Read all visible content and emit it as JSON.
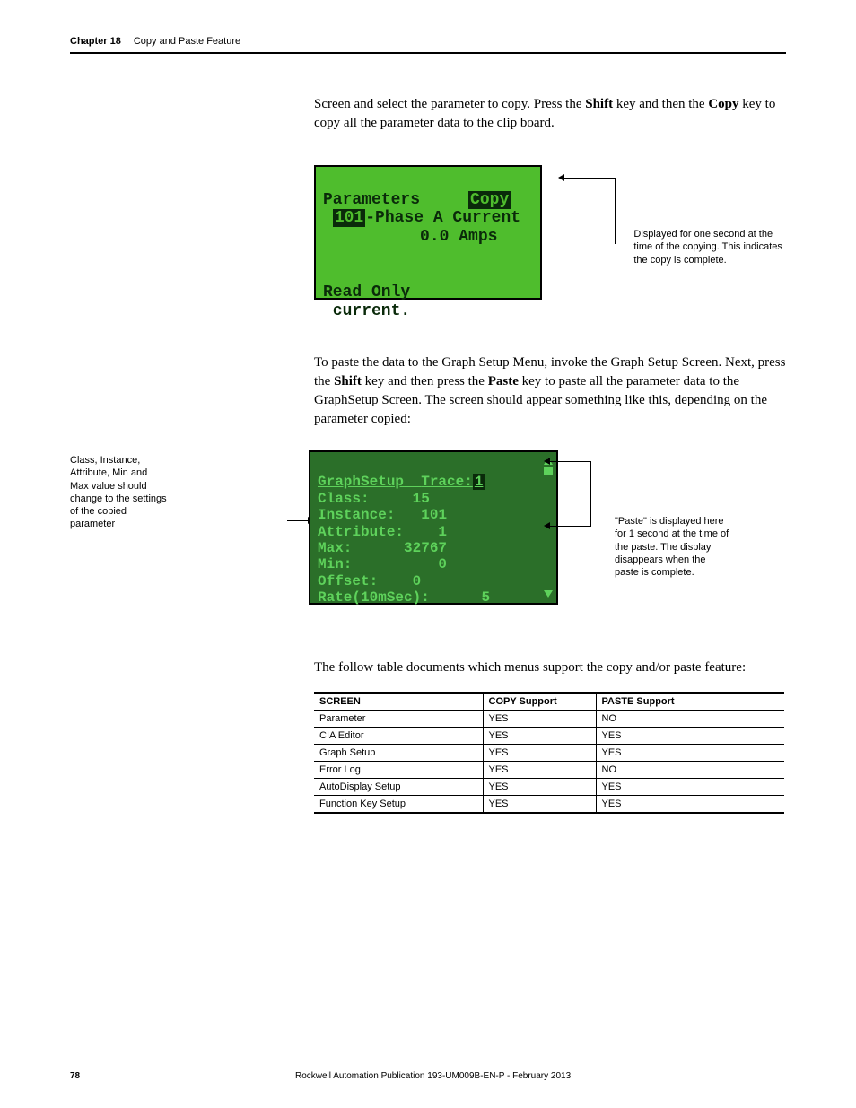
{
  "header": {
    "chapter_label": "Chapter 18",
    "chapter_title": "Copy and Paste Feature"
  },
  "para1_pre": "Screen and select the parameter to copy. Press the ",
  "para1_b1": "Shift",
  "para1_mid": " key and then the ",
  "para1_b2": "Copy",
  "para1_post": " key to copy all the parameter data to the clip board.",
  "lcd1": {
    "title": "Parameters",
    "badge": "Copy",
    "line2_id": "101",
    "line2_rest": "-Phase A Current",
    "line3": "          0.0 Amps",
    "line_readonly": "Read Only",
    "line_current": " current."
  },
  "note1": "Displayed for one second at the time of the copying. This indicates the copy is complete.",
  "para2_a": "To paste the data to the Graph Setup Menu, invoke the Graph Setup Screen. Next, press the ",
  "para2_b1": "Shift",
  "para2_b": " key and then press the ",
  "para2_b2": "Paste",
  "para2_c": " key to paste all the parameter data to the GraphSetup Screen. The screen should appear something like this, depending on the parameter copied:",
  "left_note": "Class, Instance, Attribute, Min and Max value should change to the settings of the copied parameter",
  "lcd2": {
    "title": "GraphSetup",
    "trace_label": "Trace:",
    "trace_val": "1",
    "rows": [
      {
        "k": "Class:",
        "v": "15"
      },
      {
        "k": "Instance:",
        "v": "101"
      },
      {
        "k": "Attribute:",
        "v": "1"
      },
      {
        "k": "Max:",
        "v": "32767"
      },
      {
        "k": "Min:",
        "v": "0"
      },
      {
        "k": "Offset:",
        "v": "0"
      },
      {
        "k": "Rate(10mSec):",
        "v": "5"
      }
    ]
  },
  "note2": "\"Paste\" is displayed here for 1 second at the time of the paste. The display disappears when the paste is complete.",
  "para3": "The follow table documents which menus support the copy and/or paste feature:",
  "table": {
    "headers": [
      "SCREEN",
      "COPY Support",
      "PASTE Support"
    ],
    "rows": [
      [
        "Parameter",
        "YES",
        "NO"
      ],
      [
        "CIA Editor",
        "YES",
        "YES"
      ],
      [
        "Graph Setup",
        "YES",
        "YES"
      ],
      [
        "Error Log",
        "YES",
        "NO"
      ],
      [
        "AutoDisplay Setup",
        "YES",
        "YES"
      ],
      [
        "Function Key Setup",
        "YES",
        "YES"
      ]
    ]
  },
  "footer": {
    "page": "78",
    "pub": "Rockwell Automation Publication 193-UM009B-EN-P - February 2013"
  }
}
